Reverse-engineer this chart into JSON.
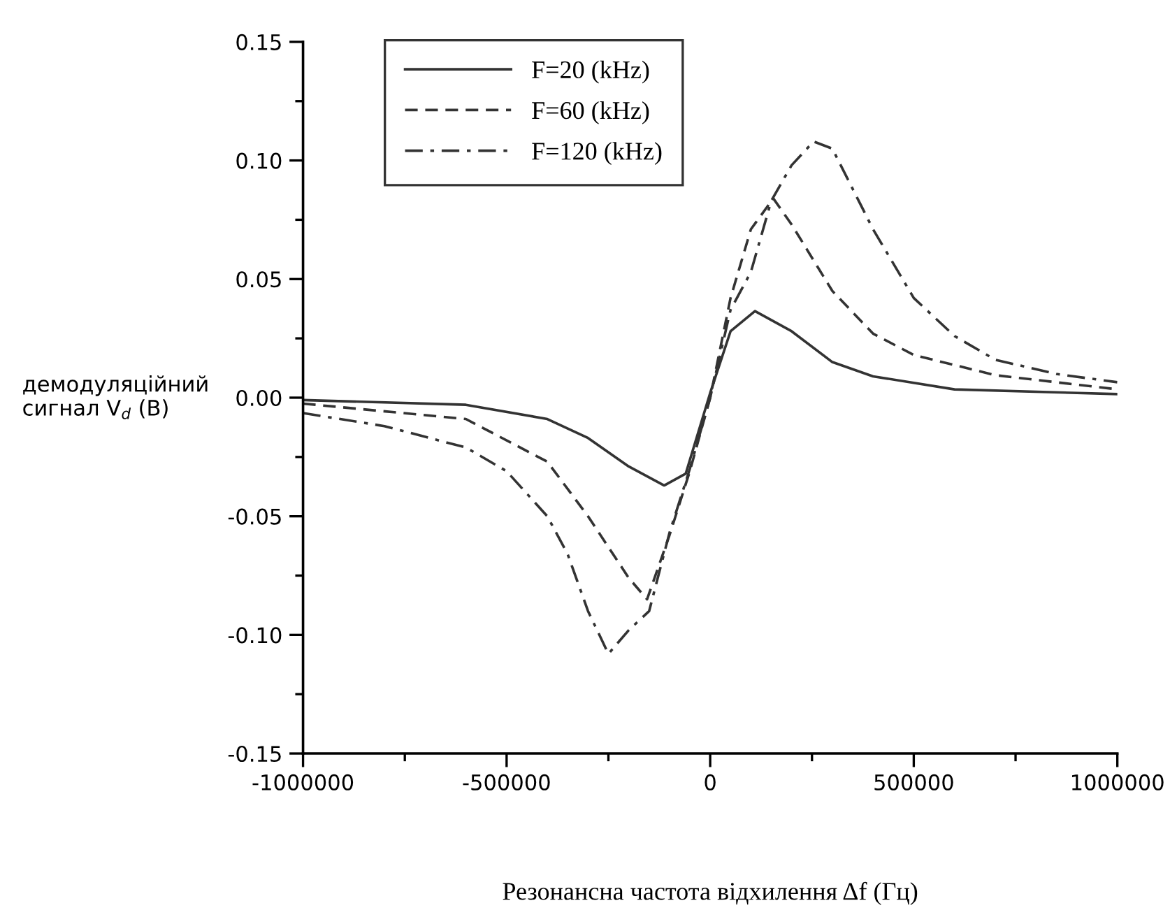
{
  "chart_data": {
    "type": "line",
    "xlabel": "Резонансна частота відхилення Δf (Гц)",
    "ylabel": "демодуляційний\nсигнал V$_{d}$ (B)",
    "xlim": [
      -1000000,
      1000000
    ],
    "xticks": [
      -1000000,
      -500000,
      0,
      500000,
      1000000
    ],
    "ylim": [
      -0.15,
      0.15
    ],
    "yticks": [
      {
        "value": -0.15,
        "label": "-0.15"
      },
      {
        "value": -0.1,
        "label": "-0.10"
      },
      {
        "value": -0.05,
        "label": "-0.05"
      },
      {
        "value": 0,
        "label": "0.00"
      },
      {
        "value": 0.05,
        "label": "0.05"
      },
      {
        "value": 0.1,
        "label": "0.10"
      },
      {
        "value": 0.15,
        "label": "0.15"
      }
    ],
    "grid": false,
    "legend": "top left",
    "series": [
      {
        "name": "F=20 (kHz)",
        "color": "#333333",
        "line_style": "solid",
        "x": [
          -1000000,
          -600000,
          -400000,
          -300000,
          -200000,
          -113000,
          -60000,
          0,
          50000,
          110000,
          200000,
          300000,
          400000,
          600000,
          1000000
        ],
        "values": [
          -0.001,
          -0.003,
          -0.009,
          -0.017,
          -0.029,
          -0.037,
          -0.032,
          0.002,
          0.028,
          0.0365,
          0.028,
          0.015,
          0.009,
          0.0035,
          0.0015
        ]
      },
      {
        "name": "F=60 (kHz)",
        "color": "#333333",
        "line_style": "dashed",
        "x": [
          -1000000,
          -600000,
          -400000,
          -300000,
          -200000,
          -155000,
          -100000,
          -50000,
          0,
          50000,
          100000,
          155000,
          200000,
          300000,
          400000,
          500000,
          700000,
          1000000
        ],
        "values": [
          -0.0025,
          -0.009,
          -0.027,
          -0.05,
          -0.076,
          -0.085,
          -0.058,
          -0.031,
          0.0,
          0.042,
          0.071,
          0.084,
          0.073,
          0.045,
          0.027,
          0.018,
          0.0095,
          0.0035
        ]
      },
      {
        "name": "F=120 (kHz)",
        "color": "#333333",
        "line_style": "dashdot",
        "x": [
          -1000000,
          -800000,
          -600000,
          -500000,
          -400000,
          -350000,
          -300000,
          -250000,
          -200000,
          -150000,
          -100000,
          -50000,
          0,
          50000,
          100000,
          150000,
          200000,
          254000,
          300000,
          400000,
          500000,
          600000,
          700000,
          850000,
          1000000
        ],
        "values": [
          -0.0065,
          -0.012,
          -0.021,
          -0.031,
          -0.05,
          -0.066,
          -0.09,
          -0.108,
          -0.098,
          -0.09,
          -0.057,
          -0.03,
          0.0,
          0.037,
          0.053,
          0.083,
          0.098,
          0.108,
          0.105,
          0.071,
          0.042,
          0.026,
          0.016,
          0.01,
          0.0065
        ]
      }
    ]
  }
}
